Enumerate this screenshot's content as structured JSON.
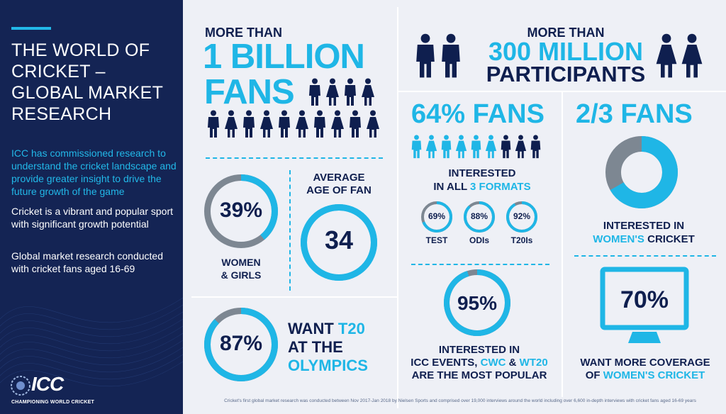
{
  "left_panel": {
    "title": "THE WORLD OF CRICKET – GLOBAL MARKET RESEARCH",
    "intro": "ICC has commissioned research to understand the cricket landscape and provide greater insight to drive the future growth of the game",
    "paragraph_1": "Cricket is a vibrant and popular sport with significant growth potential",
    "paragraph_2": "Global market research conducted with cricket fans aged 16-69",
    "logo_text": "ICC",
    "logo_tagline": "CHAMPIONING WORLD CRICKET"
  },
  "fans_block": {
    "lead": "MORE THAN",
    "headline_1": "1 BILLION",
    "headline_2": "FANS"
  },
  "participants_block": {
    "lead": "MORE THAN",
    "headline_1": "300 MILLION",
    "headline_2": "PARTICIPANTS"
  },
  "women_stat": {
    "value": "39%",
    "fraction": 0.39,
    "label_1": "WOMEN",
    "label_2": "& GIRLS"
  },
  "age_stat": {
    "label_1": "AVERAGE",
    "label_2": "AGE OF FAN",
    "value": "34"
  },
  "t20_stat": {
    "value": "87%",
    "fraction": 0.87,
    "label_1": "WANT",
    "label_1_hl": "T20",
    "label_2": "AT THE",
    "label_3": "OLYMPICS"
  },
  "formats_block": {
    "headline": "64% FANS",
    "highlighted_people": 6,
    "total_people": 9,
    "label_1": "INTERESTED",
    "label_2_a": "IN ALL",
    "label_2_b": "3 FORMATS",
    "formats": [
      {
        "value": "69%",
        "fraction": 0.69,
        "label": "TEST"
      },
      {
        "value": "88%",
        "fraction": 0.88,
        "label": "ODIs"
      },
      {
        "value": "92%",
        "fraction": 0.92,
        "label": "T20Is"
      }
    ]
  },
  "events_stat": {
    "value": "95%",
    "fraction": 0.95,
    "label_1": "INTERESTED IN",
    "label_2_a": "ICC EVENTS,",
    "label_2_b": "CWC",
    "label_2_c": "&",
    "label_2_d": "WT20",
    "label_3": "ARE THE MOST POPULAR"
  },
  "womens_cricket": {
    "headline": "2/3 FANS",
    "fraction": 0.667,
    "label_1": "INTERESTED IN",
    "label_2_a": "WOMEN'S",
    "label_2_b": "CRICKET"
  },
  "coverage_stat": {
    "value": "70%",
    "label_1": "WANT MORE COVERAGE",
    "label_2_a": "OF",
    "label_2_b": "WOMEN'S CRICKET"
  },
  "footnote": "Cricket's first global market research was conducted between Nov 2017-Jan 2018 by Nielsen Sports and comprised over 19,000 interviews around the world including over 6,600 in-depth interviews with cricket fans aged 16-69 years",
  "colors": {
    "navy": "#0f1f4f",
    "cyan": "#1fb6e6",
    "grey": "#7d8792",
    "panel": "#142454"
  }
}
